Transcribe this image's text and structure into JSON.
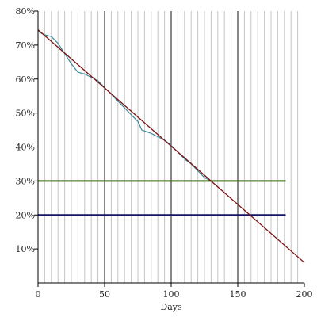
{
  "chart_data": {
    "type": "line",
    "xlabel": "Days",
    "ylabel": "",
    "xlim": [
      0,
      200
    ],
    "ylim": [
      0,
      80
    ],
    "x_ticks": [
      0,
      50,
      100,
      150,
      200
    ],
    "x_tick_labels": [
      "0",
      "50",
      "100",
      "150",
      "200"
    ],
    "y_ticks": [
      10,
      20,
      30,
      40,
      50,
      60,
      70,
      80
    ],
    "y_tick_labels": [
      "10%",
      "20%",
      "30%",
      "40%",
      "50%",
      "60%",
      "70%",
      "80%"
    ],
    "grid": {
      "major_x": [
        50,
        100,
        150
      ],
      "minor_x": [
        5,
        10,
        15,
        20,
        25,
        30,
        35,
        40,
        45,
        55,
        60,
        65,
        70,
        75,
        80,
        85,
        90,
        95,
        105,
        110,
        115,
        120,
        125,
        130,
        135,
        140,
        145,
        155,
        160,
        165,
        170,
        175,
        180,
        185,
        190,
        195
      ]
    },
    "series": [
      {
        "color": "#7a1212",
        "style": "trend",
        "x": [
          0,
          200
        ],
        "y": [
          74.5,
          6
        ]
      },
      {
        "color": "#3a8a9a",
        "style": "data",
        "x": [
          0,
          5,
          10,
          15,
          20,
          25,
          30,
          35,
          40,
          45,
          50,
          55,
          60,
          65,
          70,
          75,
          78,
          85,
          90,
          95,
          100,
          105,
          110,
          115,
          120,
          125,
          130
        ],
        "y": [
          74,
          73,
          72.5,
          70.5,
          67.5,
          64.5,
          62,
          61.5,
          60.5,
          59.5,
          57.5,
          55.5,
          53.5,
          51.5,
          49.5,
          47.5,
          45,
          44,
          43,
          42,
          40.5,
          38.5,
          36.5,
          35,
          33,
          31,
          30
        ]
      },
      {
        "color": "#3a6a10",
        "style": "hline",
        "x": [
          0,
          186
        ],
        "y": [
          30,
          30
        ]
      },
      {
        "color": "#141466",
        "style": "hline",
        "x": [
          0,
          186
        ],
        "y": [
          20,
          20
        ]
      }
    ]
  }
}
